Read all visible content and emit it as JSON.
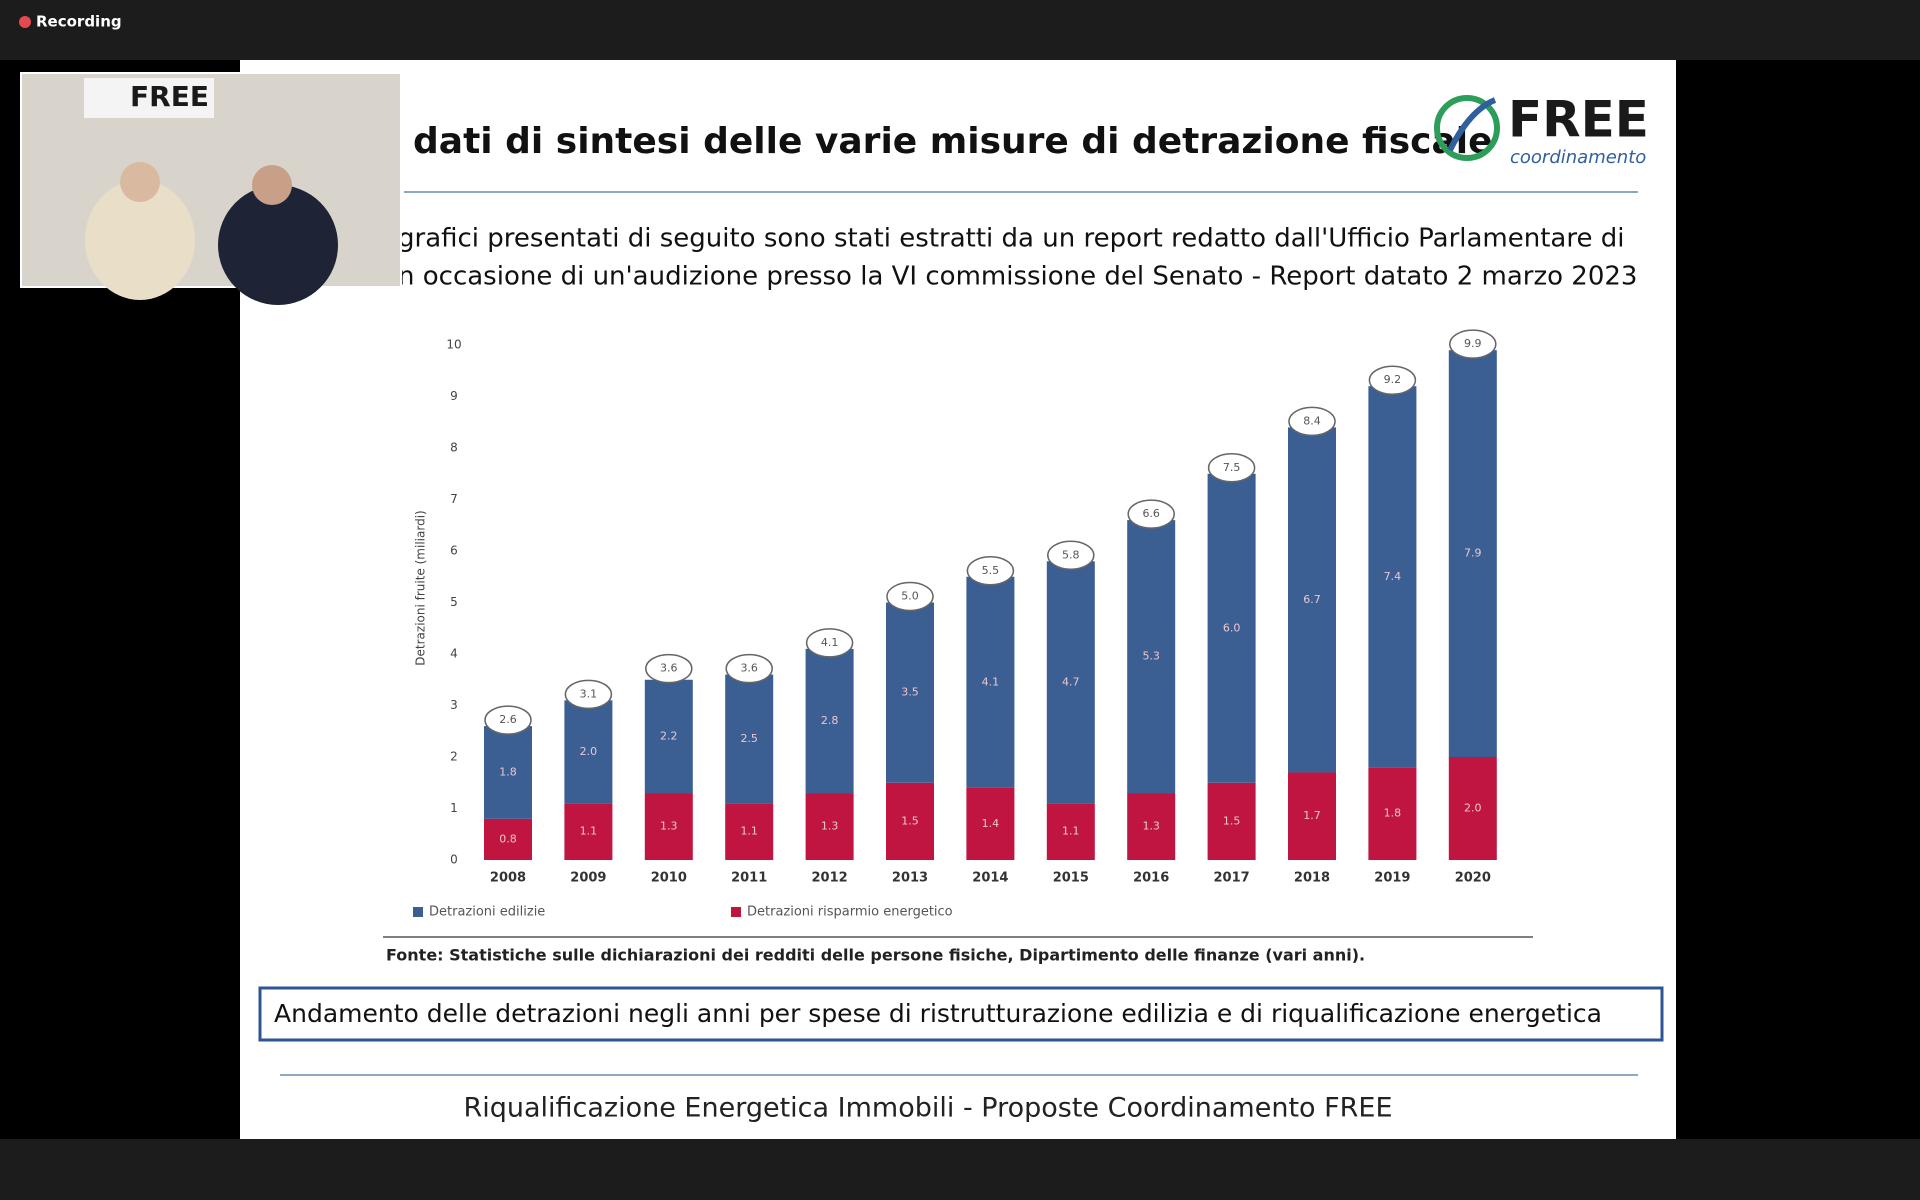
{
  "recording": "Recording",
  "thumbnail": {
    "banner": "FREE"
  },
  "slide": {
    "title": "dati di sintesi delle varie misure di detrazione fiscale",
    "logo": {
      "name": "FREE",
      "sub": "coordinamento"
    },
    "intro": [
      "grafici presentati di seguito sono stati estratti da un report redatto dall'Ufficio Parlamentare di",
      "n occasione di un'audizione presso la VI commissione del Senato - Report datato 2 marzo 2023"
    ],
    "source": "Fonte: Statistiche sulle dichiarazioni dei redditi delle persone fisiche, Dipartimento delle finanze (vari anni).",
    "caption": "Andamento delle detrazioni negli anni per spese di ristrutturazione edilizia e di riqualificazione energetica",
    "footer": "Riqualificazione Energetica Immobili - Proposte Coordinamento FREE"
  },
  "chart_data": {
    "type": "stacked-bar",
    "y_label": "Detrazioni fruite (miliardi)",
    "categories": [
      "2008",
      "2009",
      "2010",
      "2011",
      "2012",
      "2013",
      "2014",
      "2015",
      "2016",
      "2017",
      "2018",
      "2019",
      "2020"
    ],
    "series": [
      {
        "name": "Detrazioni edilizie",
        "color": "#3b5f93",
        "values": [
          1.8,
          2.0,
          2.2,
          2.5,
          2.8,
          3.5,
          4.1,
          4.7,
          5.3,
          6.0,
          6.7,
          7.4,
          7.9
        ],
        "value_labels": [
          "1.8",
          "2.0",
          "2.2",
          "2.5",
          "2.8",
          "3.5",
          "4.1",
          "4.7",
          "5.3",
          "6.0",
          "6.7",
          "7.4",
          "7.9"
        ]
      },
      {
        "name": "Detrazioni risparmio energetico",
        "color": "#bf1540",
        "values": [
          0.8,
          1.1,
          1.3,
          1.1,
          1.3,
          1.5,
          1.4,
          1.1,
          1.3,
          1.5,
          1.7,
          1.8,
          2.0
        ],
        "value_labels": [
          "0.8",
          "1.1",
          "1.3",
          "1.1",
          "1.3",
          "1.5",
          "1.4",
          "1.1",
          "1.3",
          "1.5",
          "1.7",
          "1.8",
          "2.0"
        ]
      }
    ],
    "totals": [
      2.6,
      3.1,
      3.6,
      3.6,
      4.1,
      5.0,
      5.5,
      5.8,
      6.6,
      7.5,
      8.4,
      9.2,
      9.9
    ],
    "total_labels": [
      "2.6",
      "3.1",
      "3.6",
      "3.6",
      "4.1",
      "5.0",
      "5.5",
      "5.8",
      "6.6",
      "7.5",
      "8.4",
      "9.2",
      "9.9"
    ],
    "ylim": [
      0,
      10
    ],
    "yticks": [
      0,
      1,
      2,
      3,
      4,
      5,
      6,
      7,
      8,
      9,
      10
    ]
  }
}
